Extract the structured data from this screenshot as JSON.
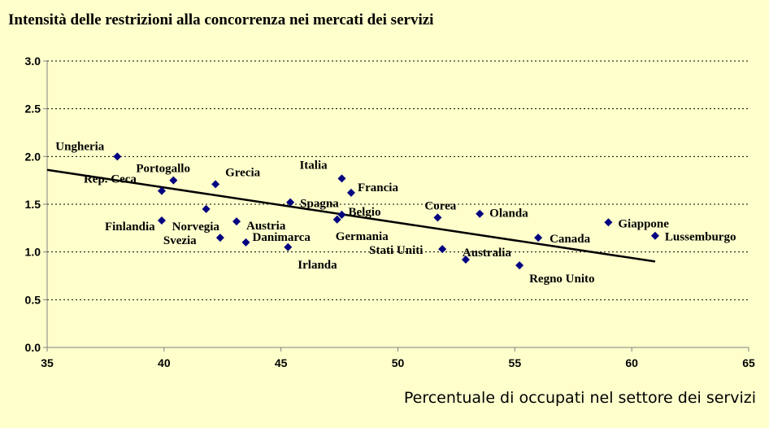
{
  "chart_data": {
    "type": "scatter",
    "title": "Intensità delle restrizioni alla concorrenza nei mercati dei servizi",
    "xlabel": "Percentuale di occupati nel settore dei servizi",
    "ylabel": "",
    "xlim": [
      35,
      65
    ],
    "ylim": [
      0.0,
      3.0
    ],
    "x_ticks": [
      "35",
      "40",
      "45",
      "50",
      "55",
      "60",
      "65"
    ],
    "y_ticks": [
      "0.0",
      "0.5",
      "1.0",
      "1.5",
      "2.0",
      "2.5",
      "3.0"
    ],
    "grid": "horizontal dashed",
    "marker_color": "#000080",
    "background_color": "#ffffcc",
    "points": [
      {
        "label": "Ungheria",
        "x": 38.0,
        "y": 2.0
      },
      {
        "label": "Portogallo",
        "x": 40.4,
        "y": 1.75
      },
      {
        "label": "Grecia",
        "x": 42.2,
        "y": 1.71
      },
      {
        "label": "Rep. Ceca",
        "x": 39.9,
        "y": 1.64
      },
      {
        "label": "Norvegia",
        "x": 41.8,
        "y": 1.45
      },
      {
        "label": "Finlandia",
        "x": 39.9,
        "y": 1.33
      },
      {
        "label": "Austria",
        "x": 43.1,
        "y": 1.32
      },
      {
        "label": "Svezia",
        "x": 42.4,
        "y": 1.15
      },
      {
        "label": "Danimarca",
        "x": 43.5,
        "y": 1.1
      },
      {
        "label": "Irlanda",
        "x": 45.3,
        "y": 1.05
      },
      {
        "label": "Spagna",
        "x": 45.4,
        "y": 1.52
      },
      {
        "label": "Italia",
        "x": 47.6,
        "y": 1.77
      },
      {
        "label": "Francia",
        "x": 48.0,
        "y": 1.62
      },
      {
        "label": "Belgio",
        "x": 47.6,
        "y": 1.39
      },
      {
        "label": "Germania",
        "x": 47.4,
        "y": 1.34
      },
      {
        "label": "Corea",
        "x": 51.7,
        "y": 1.36
      },
      {
        "label": "Olanda",
        "x": 53.5,
        "y": 1.4
      },
      {
        "label": "Stati Uniti",
        "x": 51.9,
        "y": 1.03
      },
      {
        "label": "Australia",
        "x": 52.9,
        "y": 0.92
      },
      {
        "label": "Regno Unito",
        "x": 55.2,
        "y": 0.86
      },
      {
        "label": "Canada",
        "x": 56.0,
        "y": 1.15
      },
      {
        "label": "Giappone",
        "x": 59.0,
        "y": 1.31
      },
      {
        "label": "Lussemburgo",
        "x": 61.0,
        "y": 1.17
      }
    ],
    "trendline": {
      "x": [
        35,
        61
      ],
      "y": [
        1.86,
        0.9
      ]
    }
  }
}
